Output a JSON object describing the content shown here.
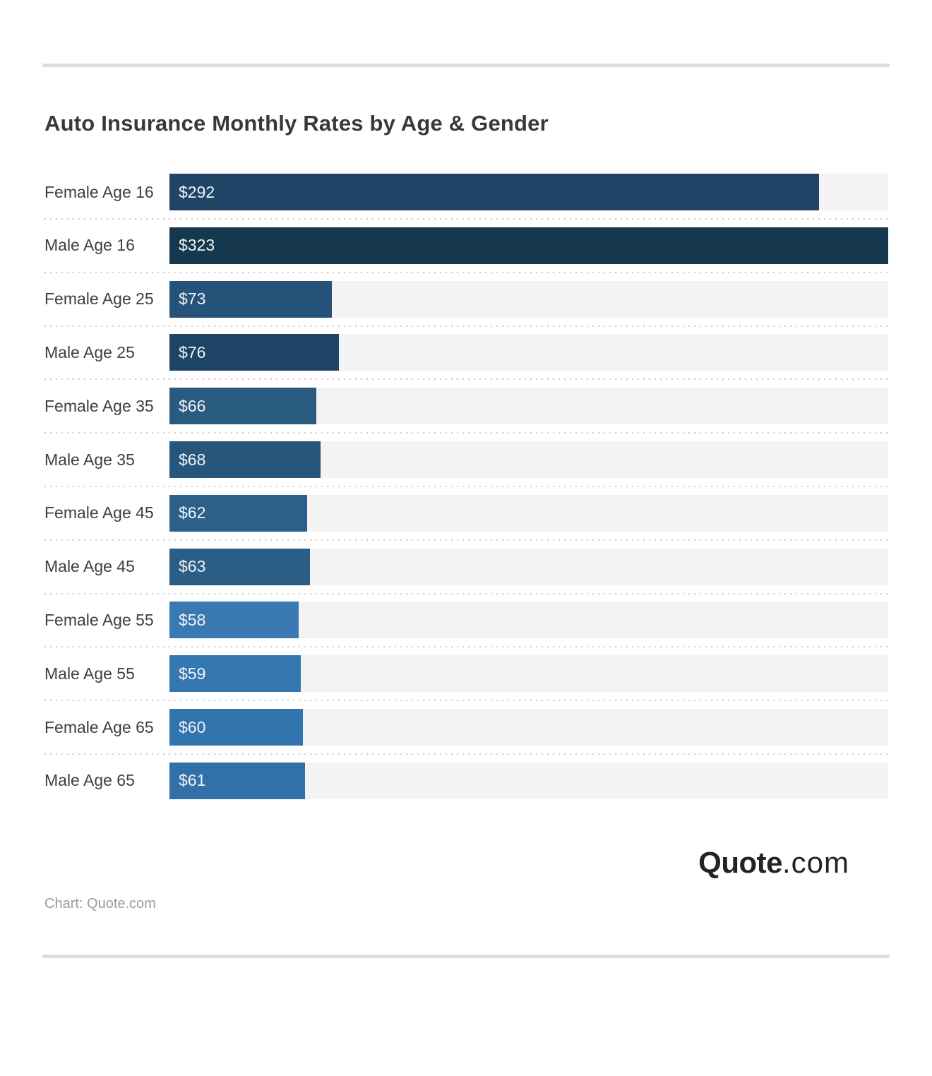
{
  "title": "Auto Insurance Monthly Rates by Age & Gender",
  "credit": "Chart: Quote.com",
  "logo": {
    "brand": "Quote",
    "suffix": ".com"
  },
  "colors": {
    "track": "#F3F3F4",
    "divider": "#DDDDDD",
    "separator_dots": "#CDCDCD",
    "title_text": "#383838",
    "label_text": "#3F3F3F",
    "value_text": "#F0F3F5",
    "credit_text": "#9B9B9B",
    "logo_text": "#262223"
  },
  "chart_data": {
    "type": "bar",
    "orientation": "horizontal",
    "title": "Auto Insurance Monthly Rates by Age & Gender",
    "categories": [
      "Female Age 16",
      "Male Age 16",
      "Female Age 25",
      "Male Age 25",
      "Female Age 35",
      "Male Age 35",
      "Female Age 45",
      "Male Age 45",
      "Female Age 55",
      "Male Age 55",
      "Female Age 65",
      "Male Age 65"
    ],
    "values": [
      292,
      323,
      73,
      76,
      66,
      68,
      62,
      63,
      58,
      59,
      60,
      61
    ],
    "value_labels": [
      "$292",
      "$323",
      "$73",
      "$76",
      "$66",
      "$68",
      "$62",
      "$63",
      "$58",
      "$59",
      "$60",
      "$61"
    ],
    "bar_colors": [
      "#1F4466",
      "#15384F",
      "#25537A",
      "#1E4565",
      "#295A80",
      "#27567C",
      "#2C608A",
      "#2B5E86",
      "#3879B4",
      "#3578B1",
      "#3274AD",
      "#3170A8"
    ],
    "xlim": [
      0,
      323
    ],
    "xlabel": "",
    "ylabel": "",
    "grid": false,
    "legend": false,
    "value_label_position": "inside-left",
    "track_color": "#F3F3F4"
  }
}
